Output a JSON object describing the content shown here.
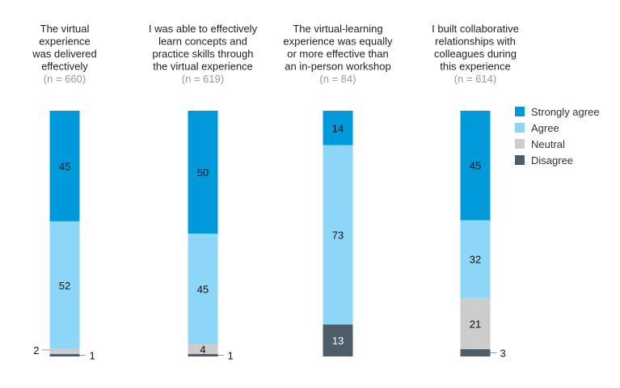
{
  "chart_data": {
    "type": "bar",
    "stacked": true,
    "orientation": "vertical-100%",
    "legend_position": "right",
    "grid": false,
    "legend": [
      {
        "key": "strongly_agree",
        "label": "Strongly agree",
        "color": "#0099d9"
      },
      {
        "key": "agree",
        "label": "Agree",
        "color": "#8ed6f7"
      },
      {
        "key": "neutral",
        "label": "Neutral",
        "color": "#cccccc"
      },
      {
        "key": "disagree",
        "label": "Disagree",
        "color": "#4f5d69"
      }
    ],
    "categories": [
      {
        "title_lines": [
          "The virtual",
          "experience",
          "was delivered",
          "effectively"
        ],
        "n": "(n = 660)",
        "values": {
          "strongly_agree": 45,
          "agree": 52,
          "neutral": 2,
          "disagree": 1
        },
        "labels": {
          "strongly_agree": "45",
          "agree": "52",
          "neutral_side": "2",
          "disagree_side": "1"
        }
      },
      {
        "title_lines": [
          "I was able to effectively",
          "learn concepts and",
          "practice skills through",
          "the virtual experience"
        ],
        "n": "(n = 619)",
        "values": {
          "strongly_agree": 50,
          "agree": 45,
          "neutral": 4,
          "disagree": 1
        },
        "labels": {
          "strongly_agree": "50",
          "agree": "45",
          "neutral": "4",
          "disagree_side": "1"
        }
      },
      {
        "title_lines": [
          "The virtual-learning",
          "experience was equally",
          "or more effective than",
          "an in-person workshop"
        ],
        "n": "(n = 84)",
        "values": {
          "strongly_agree": 14,
          "agree": 73,
          "neutral": 0,
          "disagree": 13
        },
        "labels": {
          "strongly_agree": "14",
          "agree": "73",
          "disagree": "13"
        }
      },
      {
        "title_lines": [
          "I built collaborative",
          "relationships with",
          "colleagues during",
          "this experience"
        ],
        "n": "(n = 614)",
        "values": {
          "strongly_agree": 45,
          "agree": 32,
          "neutral": 21,
          "disagree": 3
        },
        "labels": {
          "strongly_agree": "45",
          "agree": "32",
          "neutral": "21",
          "disagree_side": "3"
        }
      }
    ]
  }
}
